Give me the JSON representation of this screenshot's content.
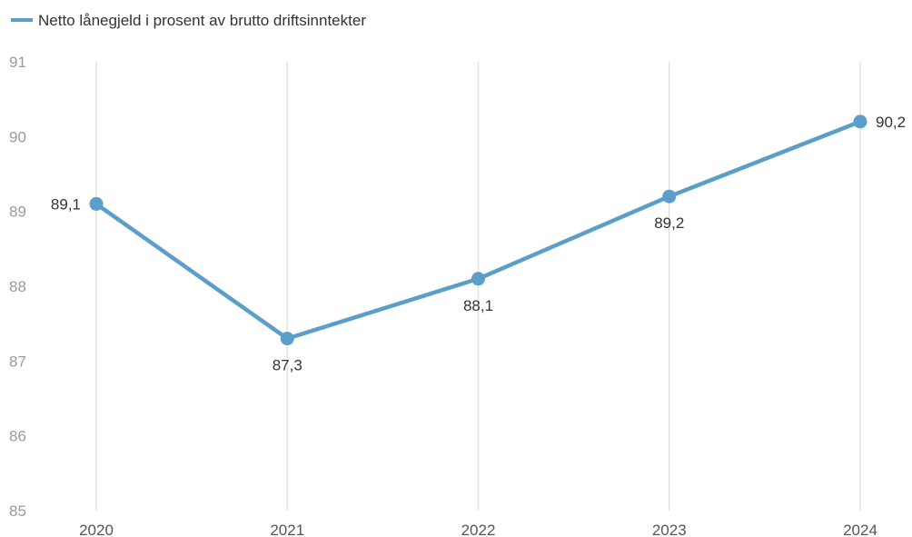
{
  "colors": {
    "series": "#5b9ec9",
    "grid": "#e3e3e3",
    "tick_text": "#9a9a9a"
  },
  "chart_data": {
    "type": "line",
    "title": "",
    "xlabel": "",
    "ylabel": "",
    "categories": [
      "2020",
      "2021",
      "2022",
      "2023",
      "2024"
    ],
    "series": [
      {
        "name": "Netto lånegjeld i prosent av brutto driftsinntekter",
        "values": [
          89.1,
          87.3,
          88.1,
          89.2,
          90.2
        ],
        "labels": [
          "89,1",
          "87,3",
          "88,1",
          "89,2",
          "90,2"
        ]
      }
    ],
    "ylim": [
      85,
      91
    ],
    "yticks": [
      "85",
      "86",
      "87",
      "88",
      "89",
      "90",
      "91"
    ],
    "grid": "vertical",
    "legend": "top-left"
  }
}
